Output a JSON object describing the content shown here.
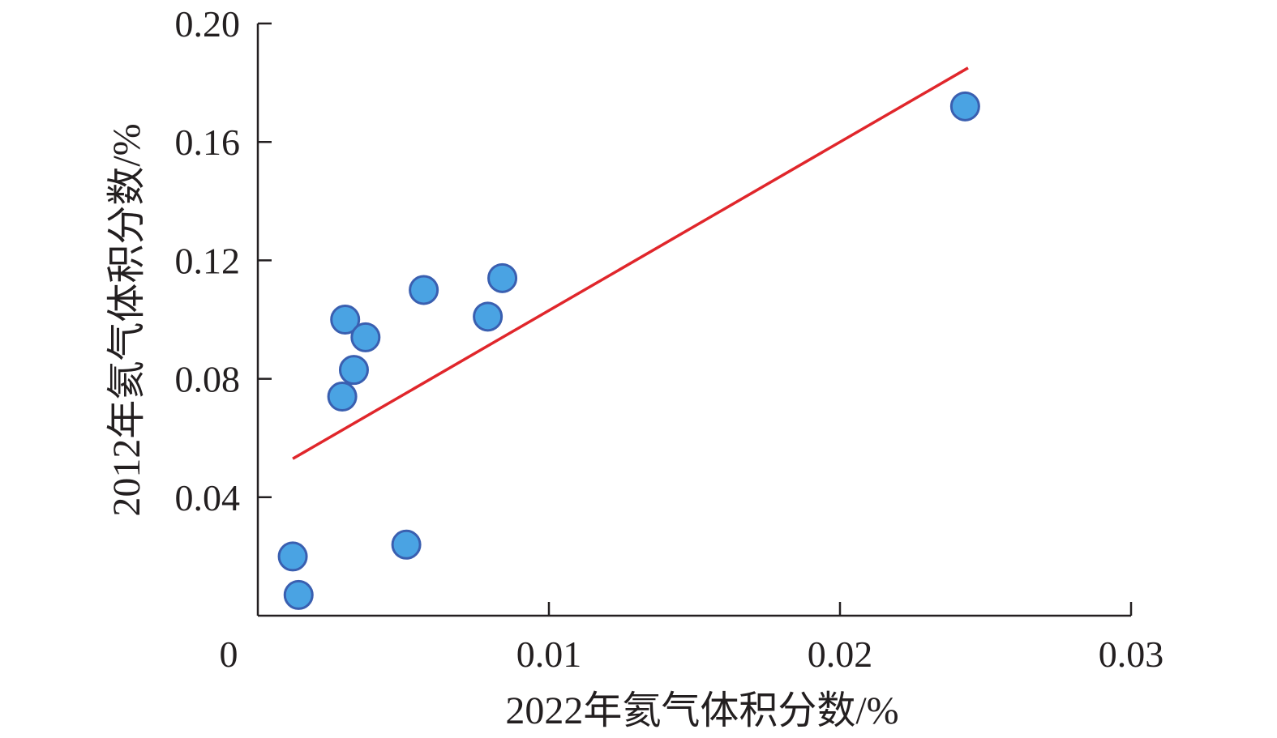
{
  "chart_data": {
    "type": "scatter",
    "xlabel": "2022年氦气体积分数/%",
    "ylabel": "2012年氦气体积分数/%",
    "xlim": [
      0,
      0.03
    ],
    "ylim": [
      0,
      0.2
    ],
    "x_ticks": [
      "0",
      "0.01",
      "0.02",
      "0.03"
    ],
    "y_ticks": [
      "0.04",
      "0.08",
      "0.12",
      "0.16",
      "0.20"
    ],
    "grid": false,
    "series": [
      {
        "points": [
          {
            "x": 0.0012,
            "y": 0.02
          },
          {
            "x": 0.0014,
            "y": 0.007
          },
          {
            "x": 0.003,
            "y": 0.1
          },
          {
            "x": 0.0037,
            "y": 0.094
          },
          {
            "x": 0.0033,
            "y": 0.083
          },
          {
            "x": 0.0029,
            "y": 0.074
          },
          {
            "x": 0.0051,
            "y": 0.024
          },
          {
            "x": 0.0057,
            "y": 0.11
          },
          {
            "x": 0.0079,
            "y": 0.101
          },
          {
            "x": 0.0084,
            "y": 0.114
          },
          {
            "x": 0.0243,
            "y": 0.172
          }
        ]
      }
    ],
    "trendline": {
      "x": [
        0.0012,
        0.0244
      ],
      "y": [
        0.053,
        0.185
      ]
    },
    "colors": {
      "marker_fill": "#4aa3e3",
      "marker_stroke": "#3a5fb0",
      "trendline": "#e0262b",
      "axis": "#231f20"
    }
  }
}
